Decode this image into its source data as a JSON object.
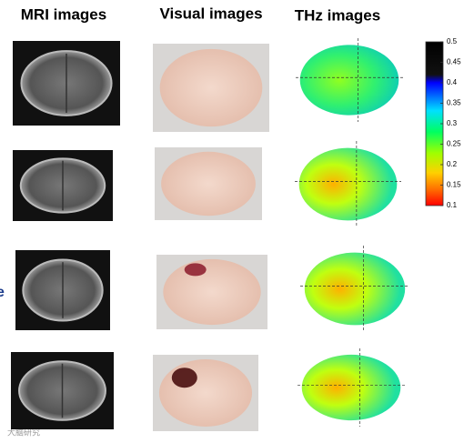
{
  "headers": [
    "MRI images",
    "Visual images",
    "THz images"
  ],
  "left_fragment": "e",
  "colorbar": {
    "range": [
      0.1,
      0.5
    ],
    "ticks": [
      0.5,
      0.45,
      0.4,
      0.35,
      0.3,
      0.25,
      0.2,
      0.15,
      0.1
    ]
  },
  "watermark": "大脑研究"
}
